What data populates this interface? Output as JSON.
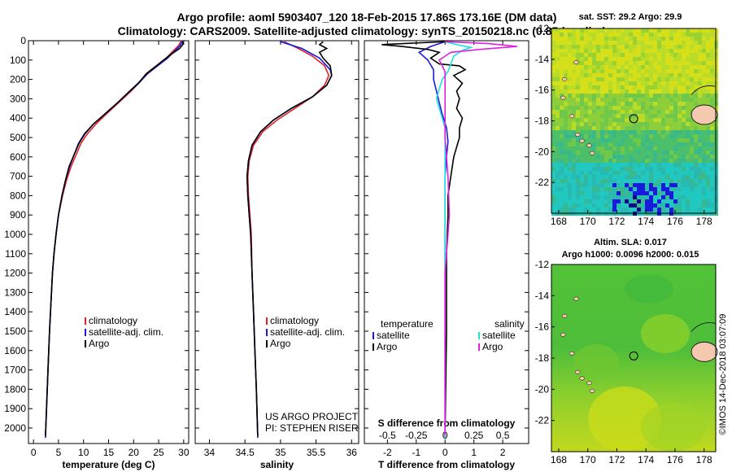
{
  "header": {
    "title_line1": "Argo profile: aoml 5903407_120 18-Feb-2015 17.86S 173.16E (DM data)",
    "title_line2": "Climatology: CARS2009. Satellite-adjusted climatology: synTS_20150218.nc (0.85d earlier)"
  },
  "credit": "©IMOS 14-Dec-2018 03:07:09",
  "project_note": [
    "US ARGO PROJECT",
    "PI: STEPHEN RISER"
  ],
  "colors": {
    "climatology": "#e0202a",
    "satellite": "#1a1adc",
    "argo": "#000000",
    "sat_salinity": "#20e0e0",
    "argo_salinity_diff": "#e020e0"
  },
  "chart_data": [
    {
      "id": "temperature",
      "type": "line",
      "xlabel": "temperature (deg C)",
      "xlim": [
        -1,
        31
      ],
      "ylim": [
        2080,
        0
      ],
      "xticks": [
        0,
        5,
        10,
        15,
        20,
        25,
        30
      ],
      "yticks": [
        0,
        100,
        200,
        300,
        400,
        500,
        600,
        700,
        800,
        900,
        1000,
        1100,
        1200,
        1300,
        1400,
        1500,
        1600,
        1700,
        1800,
        1900,
        2000
      ],
      "legend": [
        "climatology",
        "satellite-adj. clim.",
        "Argo"
      ],
      "series": [
        {
          "name": "climatology",
          "color": "#e0202a",
          "points": [
            [
              29.5,
              0
            ],
            [
              29.0,
              25
            ],
            [
              28.0,
              50
            ],
            [
              26.5,
              90
            ],
            [
              24.5,
              130
            ],
            [
              22.5,
              170
            ],
            [
              21.0,
              220
            ],
            [
              19.5,
              260
            ],
            [
              17.0,
              320
            ],
            [
              14.5,
              380
            ],
            [
              12.5,
              430
            ],
            [
              10.8,
              480
            ],
            [
              9.5,
              530
            ],
            [
              8.5,
              590
            ],
            [
              7.5,
              650
            ],
            [
              6.6,
              720
            ],
            [
              5.8,
              800
            ],
            [
              5.0,
              900
            ],
            [
              4.5,
              1000
            ],
            [
              4.1,
              1100
            ],
            [
              3.8,
              1200
            ],
            [
              3.5,
              1350
            ],
            [
              3.2,
              1500
            ],
            [
              2.9,
              1700
            ],
            [
              2.6,
              1900
            ],
            [
              2.4,
              2050
            ]
          ]
        },
        {
          "name": "satellite-adj. clim.",
          "color": "#1a1adc",
          "points": [
            [
              29.8,
              0
            ],
            [
              29.3,
              25
            ],
            [
              28.3,
              50
            ],
            [
              26.8,
              90
            ],
            [
              24.8,
              130
            ],
            [
              22.8,
              170
            ],
            [
              21.0,
              220
            ],
            [
              19.3,
              260
            ],
            [
              16.8,
              320
            ],
            [
              14.2,
              380
            ],
            [
              12.0,
              430
            ],
            [
              10.2,
              480
            ],
            [
              9.0,
              530
            ],
            [
              8.1,
              590
            ],
            [
              7.2,
              650
            ],
            [
              6.4,
              720
            ],
            [
              5.7,
              800
            ],
            [
              5.0,
              900
            ],
            [
              4.5,
              1000
            ],
            [
              4.1,
              1100
            ],
            [
              3.8,
              1200
            ],
            [
              3.5,
              1350
            ],
            [
              3.2,
              1500
            ],
            [
              2.9,
              1700
            ],
            [
              2.6,
              1900
            ],
            [
              2.4,
              2050
            ]
          ]
        },
        {
          "name": "Argo",
          "color": "#000000",
          "points": [
            [
              29.9,
              5
            ],
            [
              29.8,
              20
            ],
            [
              29.2,
              40
            ],
            [
              27.5,
              70
            ],
            [
              26.0,
              100
            ],
            [
              24.6,
              130
            ],
            [
              22.6,
              170
            ],
            [
              20.9,
              220
            ],
            [
              19.2,
              260
            ],
            [
              16.8,
              320
            ],
            [
              14.2,
              380
            ],
            [
              12.0,
              430
            ],
            [
              10.3,
              480
            ],
            [
              9.1,
              530
            ],
            [
              8.1,
              590
            ],
            [
              7.1,
              650
            ],
            [
              6.4,
              720
            ],
            [
              5.7,
              800
            ],
            [
              5.0,
              900
            ],
            [
              4.5,
              1000
            ],
            [
              4.1,
              1100
            ],
            [
              3.8,
              1200
            ],
            [
              3.5,
              1350
            ],
            [
              3.2,
              1500
            ],
            [
              2.9,
              1700
            ],
            [
              2.6,
              1900
            ],
            [
              2.4,
              2040
            ]
          ]
        }
      ]
    },
    {
      "id": "salinity",
      "type": "line",
      "xlabel": "salinity",
      "xlim": [
        33.8,
        36.1
      ],
      "ylim": [
        2080,
        0
      ],
      "xticks": [
        34,
        34.5,
        35,
        35.5,
        36
      ],
      "legend": [
        "climatology",
        "satellite-adj. clim.",
        "Argo"
      ],
      "series": [
        {
          "name": "climatology",
          "color": "#e0202a",
          "points": [
            [
              35.05,
              5
            ],
            [
              35.25,
              40
            ],
            [
              35.45,
              80
            ],
            [
              35.62,
              130
            ],
            [
              35.68,
              180
            ],
            [
              35.62,
              230
            ],
            [
              35.45,
              290
            ],
            [
              35.2,
              350
            ],
            [
              34.95,
              410
            ],
            [
              34.75,
              470
            ],
            [
              34.62,
              540
            ],
            [
              34.56,
              620
            ],
            [
              34.54,
              700
            ],
            [
              34.55,
              800
            ],
            [
              34.57,
              900
            ],
            [
              34.59,
              1000
            ],
            [
              34.6,
              1200
            ],
            [
              34.62,
              1400
            ],
            [
              34.64,
              1600
            ],
            [
              34.66,
              1800
            ],
            [
              34.68,
              2050
            ]
          ]
        },
        {
          "name": "satellite-adj. clim.",
          "color": "#1a1adc",
          "points": [
            [
              35.0,
              5
            ],
            [
              35.3,
              40
            ],
            [
              35.55,
              90
            ],
            [
              35.7,
              150
            ],
            [
              35.72,
              180
            ],
            [
              35.65,
              230
            ],
            [
              35.45,
              290
            ],
            [
              35.15,
              350
            ],
            [
              34.9,
              410
            ],
            [
              34.72,
              470
            ],
            [
              34.6,
              540
            ],
            [
              34.55,
              620
            ],
            [
              34.53,
              700
            ],
            [
              34.54,
              800
            ],
            [
              34.56,
              900
            ],
            [
              34.58,
              1000
            ],
            [
              34.6,
              1200
            ],
            [
              34.62,
              1400
            ],
            [
              34.64,
              1600
            ],
            [
              34.66,
              1800
            ],
            [
              34.68,
              2050
            ]
          ]
        },
        {
          "name": "Argo",
          "color": "#000000",
          "points": [
            [
              35.6,
              5
            ],
            [
              35.55,
              20
            ],
            [
              35.65,
              40
            ],
            [
              35.55,
              60
            ],
            [
              35.6,
              90
            ],
            [
              35.7,
              130
            ],
            [
              35.72,
              180
            ],
            [
              35.65,
              230
            ],
            [
              35.45,
              290
            ],
            [
              35.15,
              350
            ],
            [
              34.9,
              410
            ],
            [
              34.72,
              470
            ],
            [
              34.6,
              540
            ],
            [
              34.55,
              620
            ],
            [
              34.53,
              700
            ],
            [
              34.54,
              800
            ],
            [
              34.56,
              900
            ],
            [
              34.58,
              1000
            ],
            [
              34.6,
              1200
            ],
            [
              34.62,
              1400
            ],
            [
              34.64,
              1600
            ],
            [
              34.66,
              1800
            ],
            [
              34.68,
              2040
            ]
          ]
        }
      ]
    },
    {
      "id": "difference",
      "type": "line",
      "xlabel": "T difference from climatology",
      "top_axis_label": "S difference from climatology",
      "xlim": [
        -2.8,
        2.9
      ],
      "ylim": [
        2080,
        0
      ],
      "xticks": [
        -2,
        -1,
        0,
        1,
        2
      ],
      "top_ticks": [
        {
          "label": "-0.5",
          "t": -2.0
        },
        {
          "label": "-0.25",
          "t": -1.0
        },
        {
          "label": "0",
          "t": 0
        },
        {
          "label": "0.25",
          "t": 1.0
        },
        {
          "label": "0.5",
          "t": 2.0
        }
      ],
      "legend_left_title": "temperature",
      "legend_left": [
        "satellite",
        "Argo"
      ],
      "legend_right_title": "salinity",
      "legend_right": [
        "satellite",
        "Argo"
      ],
      "series": [
        {
          "name": "T satellite",
          "color": "#1a1adc",
          "points": [
            [
              0.0,
              5
            ],
            [
              -0.5,
              30
            ],
            [
              -0.9,
              60
            ],
            [
              -0.6,
              100
            ],
            [
              -0.4,
              150
            ],
            [
              -0.4,
              200
            ],
            [
              -0.3,
              260
            ],
            [
              -0.2,
              320
            ],
            [
              -0.1,
              380
            ],
            [
              0.05,
              450
            ],
            [
              0.1,
              520
            ],
            [
              0.05,
              600
            ],
            [
              0.0,
              700
            ],
            [
              0.0,
              800
            ],
            [
              0.0,
              1000
            ],
            [
              0.0,
              1500
            ],
            [
              0.0,
              2050
            ]
          ]
        },
        {
          "name": "T Argo",
          "color": "#000000",
          "points": [
            [
              0.0,
              5
            ],
            [
              -2.2,
              20
            ],
            [
              -1.5,
              30
            ],
            [
              -0.6,
              45
            ],
            [
              -0.2,
              60
            ],
            [
              -0.5,
              90
            ],
            [
              -0.2,
              120
            ],
            [
              0.5,
              130
            ],
            [
              0.7,
              150
            ],
            [
              0.3,
              180
            ],
            [
              0.6,
              220
            ],
            [
              0.4,
              260
            ],
            [
              0.5,
              300
            ],
            [
              0.4,
              350
            ],
            [
              0.6,
              400
            ],
            [
              0.5,
              450
            ],
            [
              0.5,
              500
            ],
            [
              0.4,
              550
            ],
            [
              0.3,
              600
            ],
            [
              0.2,
              700
            ],
            [
              0.1,
              800
            ],
            [
              0.1,
              900
            ],
            [
              0.05,
              1100
            ],
            [
              0.05,
              1500
            ],
            [
              0.0,
              2040
            ]
          ]
        },
        {
          "name": "S satellite",
          "color": "#20e0e0",
          "points": [
            [
              0.0,
              5
            ],
            [
              0.4,
              20
            ],
            [
              0.9,
              35
            ],
            [
              0.6,
              50
            ],
            [
              0.3,
              80
            ],
            [
              0.2,
              120
            ],
            [
              0.1,
              160
            ],
            [
              -0.1,
              200
            ],
            [
              -0.2,
              250
            ],
            [
              -0.3,
              300
            ],
            [
              -0.2,
              350
            ],
            [
              -0.1,
              400
            ],
            [
              0.0,
              450
            ],
            [
              0.0,
              500
            ],
            [
              0.0,
              600
            ],
            [
              0.0,
              800
            ],
            [
              0.0,
              1200
            ],
            [
              0.0,
              1600
            ],
            [
              0.0,
              2050
            ]
          ]
        },
        {
          "name": "S Argo",
          "color": "#e020e0",
          "points": [
            [
              0.0,
              5
            ],
            [
              1.5,
              15
            ],
            [
              2.5,
              30
            ],
            [
              1.2,
              45
            ],
            [
              0.2,
              60
            ],
            [
              0.0,
              80
            ],
            [
              -0.2,
              100
            ],
            [
              -0.1,
              130
            ],
            [
              0.0,
              160
            ],
            [
              0.0,
              200
            ],
            [
              0.0,
              300
            ],
            [
              0.0,
              500
            ],
            [
              0.1,
              700
            ],
            [
              0.15,
              900
            ],
            [
              0.1,
              1000
            ],
            [
              0.0,
              1200
            ],
            [
              0.0,
              1400
            ],
            [
              0.0,
              1600
            ],
            [
              0.0,
              2040
            ]
          ]
        }
      ]
    }
  ],
  "maps": [
    {
      "id": "sst",
      "title_lines": [
        "sat. SST: 29.2 Argo: 29.9"
      ],
      "xlim": [
        167.5,
        178.8
      ],
      "ylim": [
        -24,
        -12
      ],
      "xticks": [
        168,
        170,
        172,
        174,
        176,
        178
      ],
      "yticks": [
        -12,
        -14,
        -16,
        -18,
        -20,
        -22
      ],
      "float": [
        173.16,
        -17.86
      ]
    },
    {
      "id": "sla",
      "title_lines": [
        "Altim. SLA: 0.017",
        "Argo h1000: 0.0096 h2000: 0.015"
      ],
      "xlim": [
        167.5,
        178.8
      ],
      "ylim": [
        -24,
        -12
      ],
      "xticks": [
        168,
        170,
        172,
        174,
        176,
        178
      ],
      "yticks": [
        -12,
        -14,
        -16,
        -18,
        -20,
        -22
      ],
      "float": [
        173.16,
        -17.86
      ]
    }
  ]
}
